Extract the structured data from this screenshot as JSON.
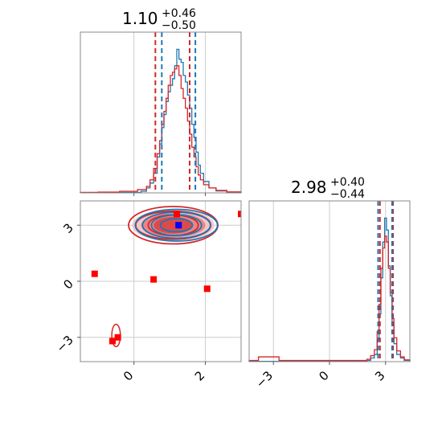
{
  "chart_data": [
    {
      "type": "histogram",
      "panel": "marginal-param-1",
      "title": {
        "main": "1.10",
        "plus": "+0.46",
        "minus": "−0.50"
      },
      "xlim": [
        -1.5,
        3.0
      ],
      "x_ticks": [
        0,
        2
      ],
      "quantile_lines": {
        "red": [
          0.6,
          1.56
        ],
        "blue": [
          0.78,
          1.72
        ]
      },
      "series": [
        {
          "color": "#1f77b4",
          "bins": [
            [
              -1.5,
              0.1
            ],
            [
              -0.5,
              0.3
            ],
            [
              0.2,
              1
            ],
            [
              0.35,
              3
            ],
            [
              0.45,
              6
            ],
            [
              0.55,
              12
            ],
            [
              0.65,
              22
            ],
            [
              0.72,
              30
            ],
            [
              0.78,
              40
            ],
            [
              0.84,
              48
            ],
            [
              0.9,
              56
            ],
            [
              0.96,
              62
            ],
            [
              1.02,
              66
            ],
            [
              1.08,
              70
            ],
            [
              1.14,
              78
            ],
            [
              1.2,
              88
            ],
            [
              1.26,
              82
            ],
            [
              1.32,
              80
            ],
            [
              1.38,
              72
            ],
            [
              1.44,
              68
            ],
            [
              1.5,
              60
            ],
            [
              1.56,
              52
            ],
            [
              1.62,
              42
            ],
            [
              1.68,
              34
            ],
            [
              1.74,
              25
            ],
            [
              1.8,
              17
            ],
            [
              1.86,
              12
            ],
            [
              1.95,
              7
            ],
            [
              2.1,
              3
            ],
            [
              2.3,
              1.2
            ],
            [
              2.6,
              0.3
            ],
            [
              3.0,
              0
            ]
          ]
        },
        {
          "color": "#d62728",
          "bins": [
            [
              -1.5,
              0.3
            ],
            [
              -1.0,
              0.5
            ],
            [
              -0.4,
              1
            ],
            [
              0.1,
              2
            ],
            [
              0.35,
              4
            ],
            [
              0.45,
              8
            ],
            [
              0.55,
              15
            ],
            [
              0.65,
              24
            ],
            [
              0.72,
              32
            ],
            [
              0.78,
              42
            ],
            [
              0.84,
              50
            ],
            [
              0.9,
              58
            ],
            [
              0.96,
              66
            ],
            [
              1.02,
              72
            ],
            [
              1.08,
              74
            ],
            [
              1.14,
              76
            ],
            [
              1.2,
              78
            ],
            [
              1.26,
              72
            ],
            [
              1.32,
              64
            ],
            [
              1.38,
              58
            ],
            [
              1.44,
              52
            ],
            [
              1.5,
              44
            ],
            [
              1.56,
              36
            ],
            [
              1.62,
              28
            ],
            [
              1.68,
              22
            ],
            [
              1.74,
              16
            ],
            [
              1.8,
              11
            ],
            [
              1.86,
              8
            ],
            [
              1.95,
              5
            ],
            [
              2.1,
              3
            ],
            [
              2.3,
              1.5
            ],
            [
              2.6,
              0.6
            ],
            [
              3.0,
              0
            ]
          ]
        }
      ]
    },
    {
      "type": "histogram",
      "panel": "marginal-param-2",
      "title": {
        "main": "2.98",
        "plus": "+0.40",
        "minus": "−0.44"
      },
      "xlim": [
        -4.3,
        4.3
      ],
      "x_ticks": [
        -3,
        0,
        3
      ],
      "x_tick_labels": [
        "−3",
        "0",
        "3"
      ],
      "quantile_lines": {
        "red": [
          2.7,
          3.4
        ],
        "blue": [
          2.6,
          3.35
        ]
      },
      "series": [
        {
          "color": "#1f77b4",
          "bins": [
            [
              -4.3,
              0.2
            ],
            [
              1.6,
              0.5
            ],
            [
              2.0,
              1
            ],
            [
              2.2,
              3
            ],
            [
              2.4,
              6
            ],
            [
              2.55,
              18
            ],
            [
              2.65,
              40
            ],
            [
              2.75,
              70
            ],
            [
              2.85,
              100
            ],
            [
              2.95,
              120
            ],
            [
              3.05,
              110
            ],
            [
              3.15,
              80
            ],
            [
              3.25,
              55
            ],
            [
              3.35,
              30
            ],
            [
              3.45,
              15
            ],
            [
              3.6,
              6
            ],
            [
              3.8,
              3
            ],
            [
              4.0,
              1
            ],
            [
              4.3,
              0
            ]
          ]
        },
        {
          "color": "#d62728",
          "bins": [
            [
              -4.3,
              1
            ],
            [
              -3.8,
              4
            ],
            [
              -2.7,
              1
            ],
            [
              1.5,
              1
            ],
            [
              2.0,
              2
            ],
            [
              2.2,
              5
            ],
            [
              2.4,
              10
            ],
            [
              2.55,
              25
            ],
            [
              2.65,
              48
            ],
            [
              2.75,
              78
            ],
            [
              2.85,
              95
            ],
            [
              2.95,
              105
            ],
            [
              3.05,
              100
            ],
            [
              3.15,
              78
            ],
            [
              3.25,
              58
            ],
            [
              3.35,
              36
            ],
            [
              3.45,
              20
            ],
            [
              3.6,
              9
            ],
            [
              3.8,
              4
            ],
            [
              4.0,
              1.5
            ],
            [
              4.3,
              0
            ]
          ]
        }
      ]
    },
    {
      "type": "scatter",
      "panel": "joint-param-1-vs-param-2",
      "xlim": [
        -1.5,
        3.0
      ],
      "ylim": [
        -4.3,
        4.3
      ],
      "x_ticks": [
        0,
        2
      ],
      "y_ticks": [
        -3,
        0,
        3
      ],
      "y_tick_labels": [
        "−3",
        "0",
        "3"
      ],
      "contours": {
        "center": [
          1.1,
          3.0
        ],
        "red_filled_radii": [
          [
            1.15,
            0.85
          ],
          [
            0.9,
            0.65
          ],
          [
            0.55,
            0.45
          ]
        ],
        "red_outline_radii": [
          [
            1.25,
            1.0
          ],
          [
            1.05,
            0.75
          ],
          [
            0.7,
            0.55
          ]
        ],
        "blue_outline_radii": [
          [
            1.15,
            0.85
          ],
          [
            0.95,
            0.7
          ],
          [
            0.7,
            0.55
          ],
          [
            0.45,
            0.35
          ]
        ]
      },
      "points": [
        {
          "x": 1.2,
          "y": 3.6,
          "color": "#ff0000"
        },
        {
          "x": 1.25,
          "y": 3.0,
          "color": "#0000ff"
        },
        {
          "x": 3.0,
          "y": 3.6,
          "color": "#ff0000"
        },
        {
          "x": -1.1,
          "y": 0.4,
          "color": "#ff0000"
        },
        {
          "x": 0.55,
          "y": 0.1,
          "color": "#ff0000"
        },
        {
          "x": 2.05,
          "y": -0.4,
          "color": "#ff0000"
        },
        {
          "x": -0.6,
          "y": -3.2,
          "color": "#ff0000"
        },
        {
          "x": -0.45,
          "y": -3.0,
          "color": "#ff0000"
        }
      ],
      "low_blob": {
        "center": [
          -0.5,
          -2.9
        ],
        "rx": 0.12,
        "ry": 0.6,
        "color": "#d62728"
      }
    }
  ]
}
